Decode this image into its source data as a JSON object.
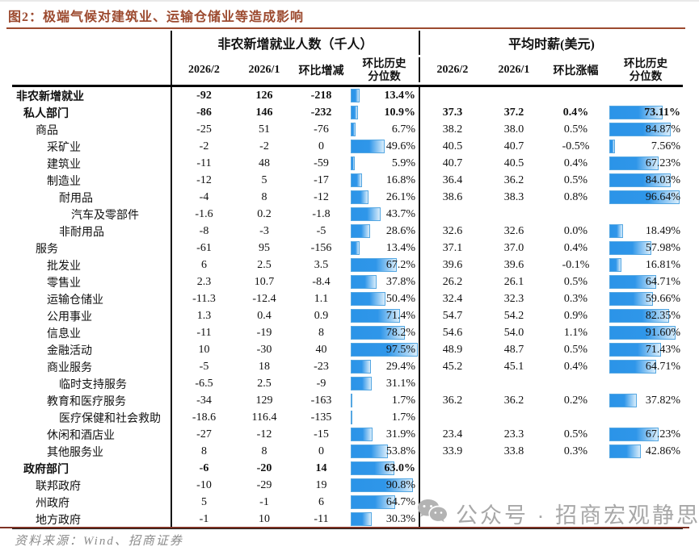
{
  "figure": {
    "title": "图2：极端气候对建筑业、运输仓储业等造成影响",
    "source_note": "资料来源：Wind、招商证券",
    "watermark_text": "公众号 · 招商宏观静思录"
  },
  "colors": {
    "accent_rust": "#9C4A2F",
    "bar_blue": "#2B94E8",
    "bar_blue_fade": "#D9EDFB",
    "bar_border": "#55A7E2",
    "source_gray": "#8c8c8c",
    "watermark_gray": "#a8a8a8"
  },
  "table": {
    "group1_header": "非农新增就业人数（千人）",
    "group2_header": "平均时薪(美元)",
    "sub_emp": [
      "2026/2",
      "2026/1",
      "环比增减"
    ],
    "sub_wage": [
      "2026/2",
      "2026/1",
      "环比涨幅"
    ],
    "pct_header": [
      "环比历史",
      "分位数"
    ]
  },
  "chart_data": {
    "type": "table",
    "title": "极端气候对建筑业、运输仓储业等造成影响",
    "column_groups": [
      {
        "group": "非农新增就业人数（千人）",
        "columns": [
          "2026/2",
          "2026/1",
          "环比增减",
          "环比历史分位数"
        ]
      },
      {
        "group": "平均时薪(美元)",
        "columns": [
          "2026/2",
          "2026/1",
          "环比涨幅",
          "环比历史分位数"
        ]
      }
    ],
    "bar_style": "blue gradient data bars in percentile columns, 0-100% scale",
    "rows": [
      {
        "label": "非农新增就业",
        "indent": 0,
        "bold": true,
        "emp": [
          "-92",
          "126",
          "-218"
        ],
        "emp_pct": 13.4,
        "wage": null,
        "wage_pct": null
      },
      {
        "label": "私人部门",
        "indent": 1,
        "bold": true,
        "emp": [
          "-86",
          "146",
          "-232"
        ],
        "emp_pct": 10.9,
        "wage": [
          "37.3",
          "37.2",
          "0.4%"
        ],
        "wage_pct": 73.11
      },
      {
        "label": "商品",
        "indent": 2,
        "bold": false,
        "emp": [
          "-25",
          "51",
          "-76"
        ],
        "emp_pct": 6.7,
        "wage": [
          "38.2",
          "38.0",
          "0.5%"
        ],
        "wage_pct": 84.87
      },
      {
        "label": "采矿业",
        "indent": 3,
        "bold": false,
        "emp": [
          "-2",
          "-2",
          "0"
        ],
        "emp_pct": 49.6,
        "wage": [
          "40.5",
          "40.7",
          "-0.5%"
        ],
        "wage_pct": 7.56
      },
      {
        "label": "建筑业",
        "indent": 3,
        "bold": false,
        "emp": [
          "-11",
          "48",
          "-59"
        ],
        "emp_pct": 5.9,
        "wage": [
          "40.7",
          "40.5",
          "0.4%"
        ],
        "wage_pct": 67.23
      },
      {
        "label": "制造业",
        "indent": 3,
        "bold": false,
        "emp": [
          "-12",
          "5",
          "-17"
        ],
        "emp_pct": 16.8,
        "wage": [
          "36.4",
          "36.2",
          "0.5%"
        ],
        "wage_pct": 84.03
      },
      {
        "label": "耐用品",
        "indent": 4,
        "bold": false,
        "emp": [
          "-4",
          "8",
          "-12"
        ],
        "emp_pct": 26.1,
        "wage": [
          "38.6",
          "38.3",
          "0.8%"
        ],
        "wage_pct": 96.64
      },
      {
        "label": "汽车及零部件",
        "indent": 5,
        "bold": false,
        "emp": [
          "-1.6",
          "0.2",
          "-1.8"
        ],
        "emp_pct": 43.7,
        "wage": null,
        "wage_pct": null
      },
      {
        "label": "非耐用品",
        "indent": 4,
        "bold": false,
        "emp": [
          "-8",
          "-3",
          "-5"
        ],
        "emp_pct": 28.6,
        "wage": [
          "32.6",
          "32.6",
          "0.0%"
        ],
        "wage_pct": 18.49
      },
      {
        "label": "服务",
        "indent": 2,
        "bold": false,
        "emp": [
          "-61",
          "95",
          "-156"
        ],
        "emp_pct": 13.4,
        "wage": [
          "37.1",
          "37.0",
          "0.4%"
        ],
        "wage_pct": 57.98
      },
      {
        "label": "批发业",
        "indent": 3,
        "bold": false,
        "emp": [
          "6",
          "2.5",
          "3.5"
        ],
        "emp_pct": 67.2,
        "wage": [
          "39.6",
          "39.6",
          "-0.1%"
        ],
        "wage_pct": 16.81
      },
      {
        "label": "零售业",
        "indent": 3,
        "bold": false,
        "emp": [
          "2.3",
          "10.7",
          "-8.4"
        ],
        "emp_pct": 37.8,
        "wage": [
          "26.2",
          "26.1",
          "0.5%"
        ],
        "wage_pct": 64.71
      },
      {
        "label": "运输仓储业",
        "indent": 3,
        "bold": false,
        "emp": [
          "-11.3",
          "-12.4",
          "1.1"
        ],
        "emp_pct": 50.4,
        "wage": [
          "32.4",
          "32.3",
          "0.3%"
        ],
        "wage_pct": 59.66
      },
      {
        "label": "公用事业",
        "indent": 3,
        "bold": false,
        "emp": [
          "1.3",
          "0.4",
          "0.9"
        ],
        "emp_pct": 71.4,
        "wage": [
          "54.7",
          "54.2",
          "0.9%"
        ],
        "wage_pct": 82.35
      },
      {
        "label": "信息业",
        "indent": 3,
        "bold": false,
        "emp": [
          "-11",
          "-19",
          "8"
        ],
        "emp_pct": 78.2,
        "wage": [
          "54.6",
          "54.0",
          "1.1%"
        ],
        "wage_pct": 91.6
      },
      {
        "label": "金融活动",
        "indent": 3,
        "bold": false,
        "emp": [
          "10",
          "-30",
          "40"
        ],
        "emp_pct": 97.5,
        "wage": [
          "48.9",
          "48.7",
          "0.5%"
        ],
        "wage_pct": 71.43
      },
      {
        "label": "商业服务",
        "indent": 3,
        "bold": false,
        "emp": [
          "-5",
          "18",
          "-23"
        ],
        "emp_pct": 29.4,
        "wage": [
          "45.2",
          "45.1",
          "0.4%"
        ],
        "wage_pct": 64.71
      },
      {
        "label": "临时支持服务",
        "indent": 4,
        "bold": false,
        "emp": [
          "-6.5",
          "2.5",
          "-9"
        ],
        "emp_pct": 31.1,
        "wage": null,
        "wage_pct": null
      },
      {
        "label": "教育和医疗服务",
        "indent": 3,
        "bold": false,
        "emp": [
          "-34",
          "129",
          "-163"
        ],
        "emp_pct": 1.7,
        "wage": [
          "36.2",
          "36.2",
          "0.2%"
        ],
        "wage_pct": 37.82
      },
      {
        "label": "医疗保健和社会救助",
        "indent": 4,
        "bold": false,
        "emp": [
          "-18.6",
          "116.4",
          "-135"
        ],
        "emp_pct": 1.7,
        "wage": null,
        "wage_pct": null
      },
      {
        "label": "休闲和酒店业",
        "indent": 3,
        "bold": false,
        "emp": [
          "-27",
          "-12",
          "-15"
        ],
        "emp_pct": 31.9,
        "wage": [
          "23.4",
          "23.3",
          "0.5%"
        ],
        "wage_pct": 67.23
      },
      {
        "label": "其他服务业",
        "indent": 3,
        "bold": false,
        "emp": [
          "8",
          "8",
          "0"
        ],
        "emp_pct": 53.8,
        "wage": [
          "33.9",
          "33.8",
          "0.3%"
        ],
        "wage_pct": 42.86
      },
      {
        "label": "政府部门",
        "indent": 1,
        "bold": true,
        "emp": [
          "-6",
          "-20",
          "14"
        ],
        "emp_pct": 63.0,
        "wage": null,
        "wage_pct": null
      },
      {
        "label": "联邦政府",
        "indent": 2,
        "bold": false,
        "emp": [
          "-10",
          "-29",
          "19"
        ],
        "emp_pct": 90.8,
        "wage": null,
        "wage_pct": null
      },
      {
        "label": "州政府",
        "indent": 2,
        "bold": false,
        "emp": [
          "5",
          "-1",
          "6"
        ],
        "emp_pct": 64.7,
        "wage": null,
        "wage_pct": null
      },
      {
        "label": "地方政府",
        "indent": 2,
        "bold": false,
        "emp": [
          "-1",
          "10",
          "-11"
        ],
        "emp_pct": 30.3,
        "wage": null,
        "wage_pct": null
      }
    ]
  }
}
